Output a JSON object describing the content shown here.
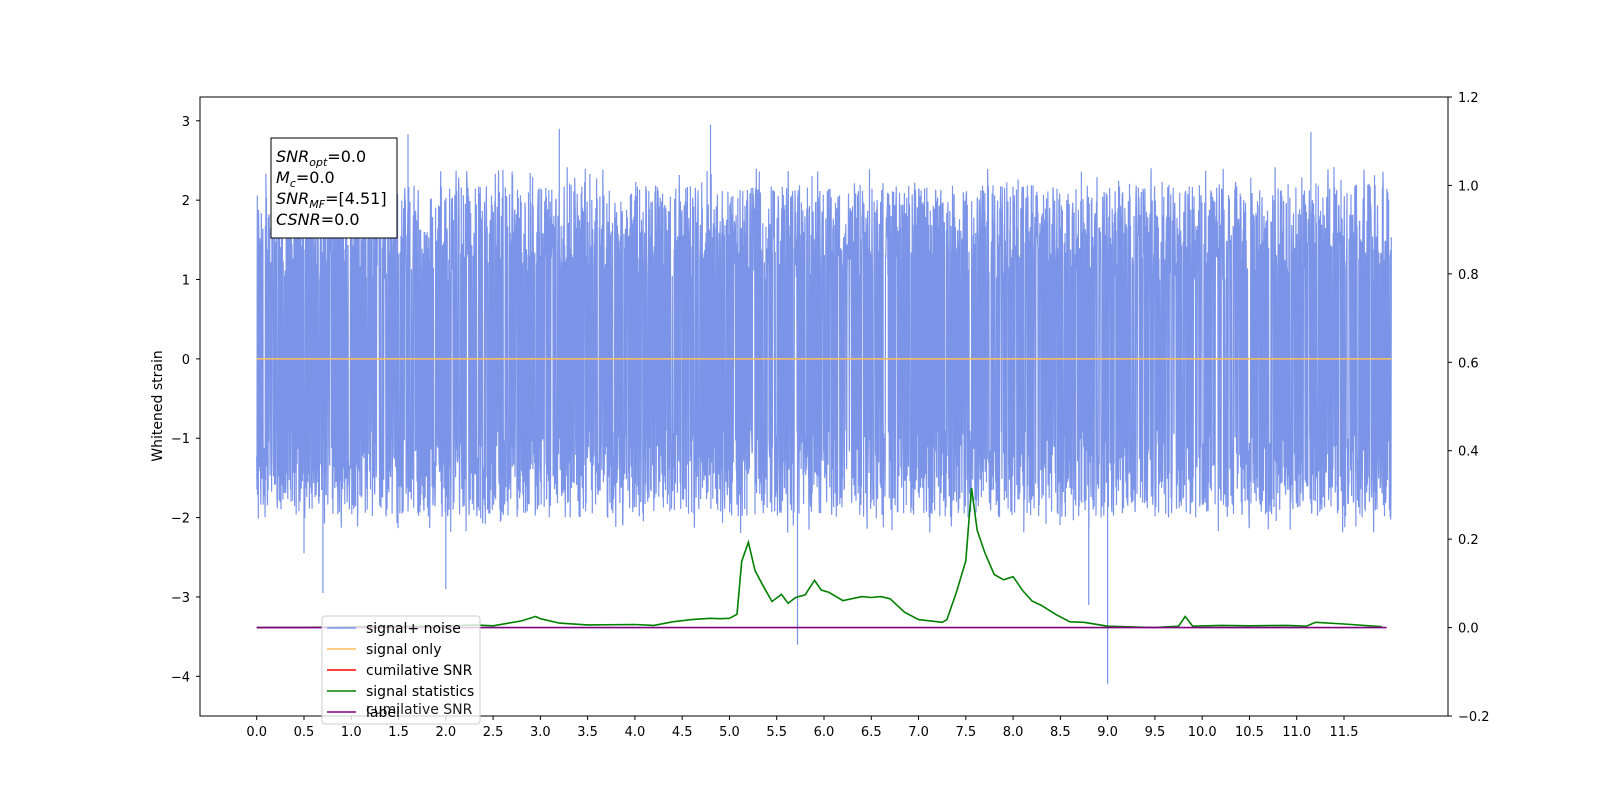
{
  "chart_data": {
    "type": "line",
    "ylabel": "Whitened strain",
    "xlim": [
      -0.6,
      12.6
    ],
    "ylim": [
      -4.5,
      3.3
    ],
    "y2lim": [
      -0.2,
      1.2
    ],
    "grid": false,
    "x_ticks": [
      "0.0",
      "0.5",
      "1.0",
      "1.5",
      "2.0",
      "2.5",
      "3.0",
      "3.5",
      "4.0",
      "4.5",
      "5.0",
      "5.5",
      "6.0",
      "6.5",
      "7.0",
      "7.5",
      "8.0",
      "8.5",
      "9.0",
      "9.5",
      "10.0",
      "10.5",
      "11.0",
      "11.5"
    ],
    "y_ticks": [
      "3",
      "2",
      "1",
      "0",
      "−1",
      "−2",
      "−3",
      "−4"
    ],
    "y2_ticks": [
      "1.2",
      "1.0",
      "0.8",
      "0.6",
      "0.4",
      "0.2",
      "0.0",
      "−0.2"
    ],
    "annotation": {
      "lines": [
        {
          "base": "SNR",
          "sub": "opt",
          "rest": "=0.0"
        },
        {
          "base": "M",
          "sub": "c",
          "rest": "=0.0"
        },
        {
          "base": "SNR",
          "sub": "MF",
          "rest": "=[4.51]"
        },
        {
          "base": "CSNR",
          "sub": "",
          "rest": "=0.0"
        }
      ]
    },
    "legend": {
      "placement": "lower-left",
      "entries": [
        {
          "label": "signal+ noise",
          "color": "#7b94e8"
        },
        {
          "label": "signal only",
          "color": "#ffbf5a"
        },
        {
          "label": "cumilative SNR",
          "color": "#ff0000"
        },
        {
          "label": "signal statistics",
          "color": "#008000"
        },
        {
          "label": "label",
          "color": "#800080"
        }
      ],
      "ghost_text": "cumilative SNR"
    },
    "series": [
      {
        "name": "signal+ noise",
        "axis": "left",
        "color": "#7b94e8",
        "x_range": [
          0.0,
          12.0
        ],
        "y_envelope": [
          -2.0,
          2.2
        ],
        "spikes": [
          {
            "x": 0.5,
            "y": -2.45
          },
          {
            "x": 0.7,
            "y": -2.95
          },
          {
            "x": 1.6,
            "y": 2.83
          },
          {
            "x": 2.0,
            "y": -2.9
          },
          {
            "x": 3.2,
            "y": 2.9
          },
          {
            "x": 4.8,
            "y": 2.95
          },
          {
            "x": 5.72,
            "y": -3.6
          },
          {
            "x": 9.0,
            "y": -4.1
          },
          {
            "x": 8.8,
            "y": -3.1
          },
          {
            "x": 11.15,
            "y": 2.86
          }
        ]
      },
      {
        "name": "signal only",
        "axis": "left",
        "color": "#ffbf5a",
        "x": [
          0.0,
          12.0
        ],
        "y": [
          0.0,
          0.0
        ]
      },
      {
        "name": "signal statistics",
        "axis": "right",
        "color": "#008000",
        "x": [
          0.0,
          0.5,
          1.0,
          1.5,
          2.0,
          2.3,
          2.5,
          2.8,
          2.95,
          3.0,
          3.2,
          3.5,
          4.0,
          4.2,
          4.4,
          4.6,
          4.8,
          4.9,
          5.0,
          5.08,
          5.13,
          5.2,
          5.27,
          5.35,
          5.45,
          5.55,
          5.62,
          5.7,
          5.8,
          5.9,
          5.97,
          6.05,
          6.2,
          6.4,
          6.5,
          6.6,
          6.7,
          6.85,
          7.0,
          7.25,
          7.3,
          7.4,
          7.5,
          7.56,
          7.62,
          7.7,
          7.8,
          7.9,
          8.0,
          8.05,
          8.1,
          8.2,
          8.3,
          8.45,
          8.6,
          8.75,
          9.0,
          9.5,
          9.75,
          9.82,
          9.9,
          10.2,
          10.5,
          10.9,
          11.1,
          11.2,
          11.5,
          11.9
        ],
        "y": [
          0.0,
          0.0,
          0.002,
          0.003,
          0.003,
          0.006,
          0.004,
          0.015,
          0.025,
          0.02,
          0.01,
          0.006,
          0.007,
          0.005,
          0.013,
          0.018,
          0.021,
          0.02,
          0.021,
          0.03,
          0.15,
          0.193,
          0.129,
          0.097,
          0.059,
          0.075,
          0.055,
          0.068,
          0.074,
          0.107,
          0.085,
          0.08,
          0.061,
          0.07,
          0.068,
          0.07,
          0.065,
          0.035,
          0.018,
          0.012,
          0.018,
          0.08,
          0.151,
          0.316,
          0.22,
          0.17,
          0.12,
          0.108,
          0.115,
          0.1,
          0.084,
          0.06,
          0.05,
          0.03,
          0.013,
          0.012,
          0.003,
          0.0,
          0.003,
          0.025,
          0.003,
          0.005,
          0.004,
          0.005,
          0.003,
          0.012,
          0.008,
          0.002
        ]
      },
      {
        "name": "label",
        "axis": "right",
        "color": "#800080",
        "x": [
          0.0,
          11.95
        ],
        "y": [
          0.0,
          0.0
        ]
      }
    ]
  }
}
